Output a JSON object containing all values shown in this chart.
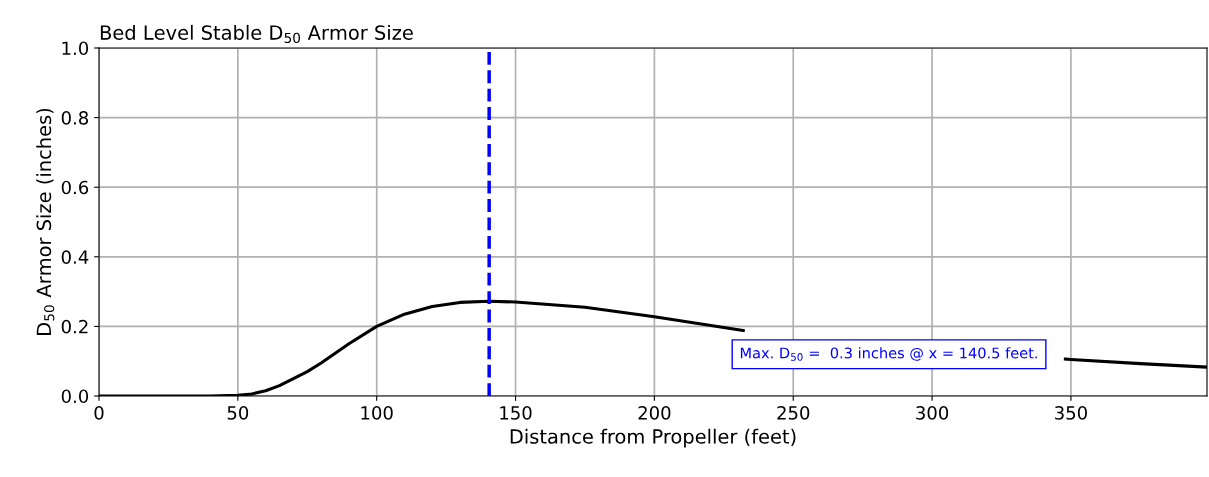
{
  "chart_data": {
    "type": "line",
    "title": "Bed Level Stable D$_{50}$ Armor Size",
    "xlabel": "Distance from Propeller (feet)",
    "ylabel": "D$_{50}$ Armor Size (inches)",
    "series": [
      {
        "color": "#000000",
        "x": [
          0,
          20,
          40,
          50,
          55,
          60,
          65,
          70,
          75,
          80,
          90,
          100,
          110,
          120,
          130,
          140.5,
          150,
          175,
          200,
          225,
          232,
          250,
          275,
          300,
          325,
          348,
          350,
          375,
          399
        ],
        "values": [
          0,
          0,
          0,
          0.002,
          0.006,
          0.015,
          0.03,
          0.05,
          0.07,
          0.095,
          0.15,
          0.2,
          0.235,
          0.257,
          0.269,
          0.272,
          0.27,
          0.255,
          0.228,
          0.197,
          0.188,
          null,
          null,
          null,
          null,
          0.106,
          0.105,
          0.093,
          0.083
        ]
      }
    ],
    "xlim": [
      0,
      399
    ],
    "xticks": [
      0,
      50,
      100,
      150,
      200,
      250,
      300,
      350
    ],
    "ylim": [
      0,
      1.0
    ],
    "yticks": [
      {
        "value": 0,
        "label": "0.0"
      },
      {
        "value": 0.2,
        "label": "0.2"
      },
      {
        "value": 0.4,
        "label": "0.4"
      },
      {
        "value": 0.6,
        "label": "0.6"
      },
      {
        "value": 0.8,
        "label": "0.8"
      },
      {
        "value": 1.0,
        "label": "1.0"
      }
    ],
    "ref_lines": [
      {
        "axis": "x",
        "value": 140.5,
        "color": "#0000ff",
        "line_style": "dashed"
      }
    ],
    "annotations": [
      "Max. D$_{50}$ =  0.3 inches @ x = 140.5 feet."
    ],
    "grid": true,
    "legend": false,
    "marker": "none",
    "line_style": "solid"
  }
}
